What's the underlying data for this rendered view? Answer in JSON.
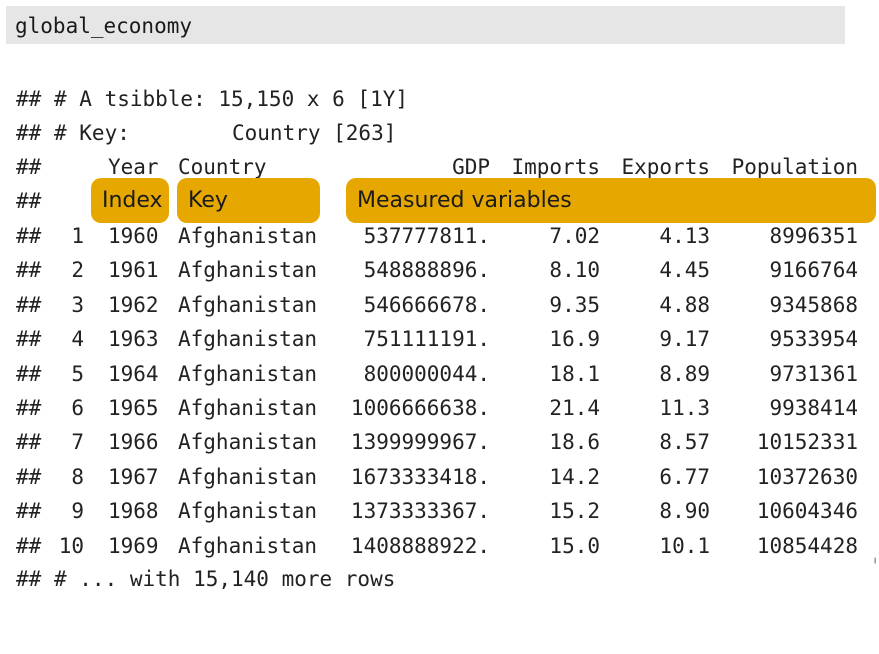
{
  "code_block": {
    "command": "global_economy"
  },
  "output": {
    "prefix": "##",
    "header_line": "# A tsibble: 15,150 x 6 [1Y]",
    "key_line_label": "# Key:",
    "key_line_value": "Country [263]",
    "columns": [
      "Year",
      "Country",
      "GDP",
      "Imports",
      "Exports",
      "Population"
    ],
    "annotations": {
      "index": "Index",
      "key": "Key",
      "measured": "Measured variables"
    },
    "rows": [
      {
        "n": "1",
        "year": "1960",
        "country": "Afghanistan",
        "gdp": "537777811.",
        "imports": "7.02",
        "exports": "4.13",
        "population": "8996351"
      },
      {
        "n": "2",
        "year": "1961",
        "country": "Afghanistan",
        "gdp": "548888896.",
        "imports": "8.10",
        "exports": "4.45",
        "population": "9166764"
      },
      {
        "n": "3",
        "year": "1962",
        "country": "Afghanistan",
        "gdp": "546666678.",
        "imports": "9.35",
        "exports": "4.88",
        "population": "9345868"
      },
      {
        "n": "4",
        "year": "1963",
        "country": "Afghanistan",
        "gdp": "751111191.",
        "imports": "16.9",
        "exports": "9.17",
        "population": "9533954"
      },
      {
        "n": "5",
        "year": "1964",
        "country": "Afghanistan",
        "gdp": "800000044.",
        "imports": "18.1",
        "exports": "8.89",
        "population": "9731361"
      },
      {
        "n": "6",
        "year": "1965",
        "country": "Afghanistan",
        "gdp": "1006666638.",
        "imports": "21.4",
        "exports": "11.3",
        "population": "9938414"
      },
      {
        "n": "7",
        "year": "1966",
        "country": "Afghanistan",
        "gdp": "1399999967.",
        "imports": "18.6",
        "exports": "8.57",
        "population": "10152331"
      },
      {
        "n": "8",
        "year": "1967",
        "country": "Afghanistan",
        "gdp": "1673333418.",
        "imports": "14.2",
        "exports": "6.77",
        "population": "10372630"
      },
      {
        "n": "9",
        "year": "1968",
        "country": "Afghanistan",
        "gdp": "1373333367.",
        "imports": "15.2",
        "exports": "8.90",
        "population": "10604346"
      },
      {
        "n": "10",
        "year": "1969",
        "country": "Afghanistan",
        "gdp": "1408888922.",
        "imports": "15.0",
        "exports": "10.1",
        "population": "10854428"
      }
    ],
    "footer_line": "# ... with 15,140 more rows"
  }
}
